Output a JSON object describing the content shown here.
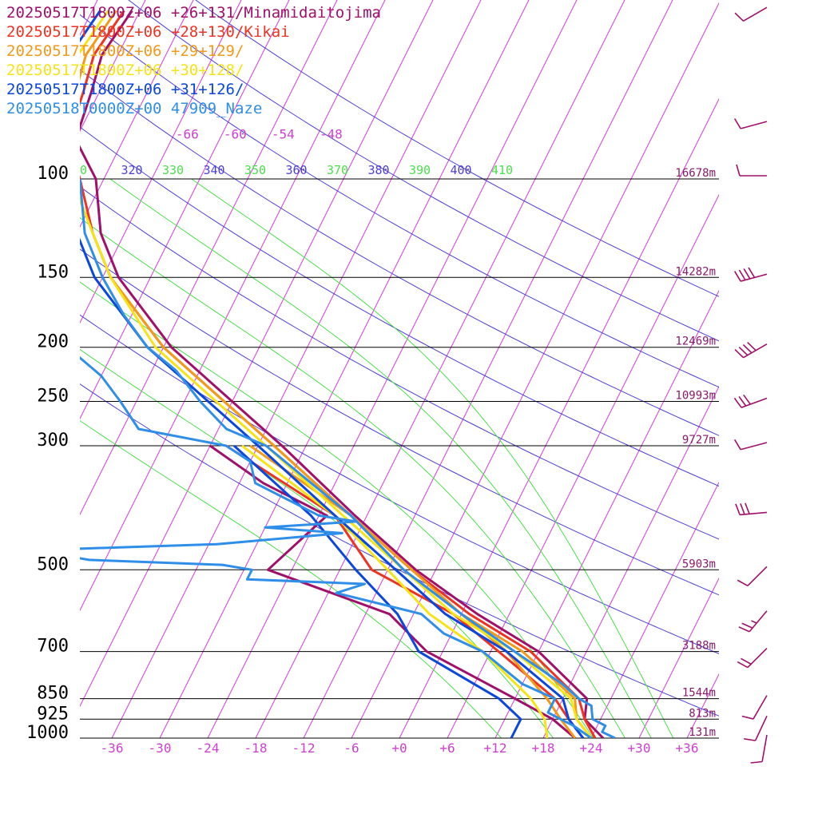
{
  "legend": [
    {
      "label": "20250517T1800Z+06 +26+131/Minamidaitojima",
      "color": "#a0106a"
    },
    {
      "label": "20250517T1800Z+06 +28+130/Kikai",
      "color": "#ee3322"
    },
    {
      "label": "20250517T1800Z+06 +29+129/",
      "color": "#f29a1a"
    },
    {
      "label": "20250517T1800Z+06 +30+128/",
      "color": "#f5e418"
    },
    {
      "label": "20250517T1800Z+06 +31+126/",
      "color": "#0b47dd"
    },
    {
      "label": "20250518T0000Z+00 47909_Naze",
      "color": "#2f8ee8"
    }
  ],
  "chart_data": {
    "type": "line",
    "chart_kind": "Skew-T sounding",
    "x_axis": {
      "ticks": [
        "-36",
        "-30",
        "-24",
        "-18",
        "-12",
        "-6",
        "+0",
        "+6",
        "+12",
        "+18",
        "+24",
        "+30",
        "+36"
      ],
      "range_c_at_1000hpa": [
        -40,
        40
      ]
    },
    "y_axis": {
      "scale": "log-pressure",
      "range_hpa": [
        80,
        1000
      ]
    },
    "pressure_levels": [
      {
        "p": 100,
        "label": "100",
        "height": "16678m"
      },
      {
        "p": 150,
        "label": "150",
        "height": "14282m"
      },
      {
        "p": 200,
        "label": "200",
        "height": "12469m"
      },
      {
        "p": 250,
        "label": "250",
        "height": "10993m"
      },
      {
        "p": 300,
        "label": "300",
        "height": "9727m"
      },
      {
        "p": 500,
        "label": "500",
        "height": "5903m"
      },
      {
        "p": 700,
        "label": "700",
        "height": "3188m"
      },
      {
        "p": 850,
        "label": "850",
        "height": "1544m"
      },
      {
        "p": 925,
        "label": "925",
        "height": "813m"
      },
      {
        "p": 1000,
        "label": "1000",
        "height": "131m"
      }
    ],
    "isotherm_labels": [
      "-66",
      "-60",
      "-54",
      "-48"
    ],
    "isotherms_c": [
      -150,
      -144,
      -138,
      -132,
      -126,
      -120,
      -114,
      -108,
      -102,
      -96,
      -90,
      -84,
      -78,
      -72,
      -66,
      -60,
      -54,
      -48,
      -42,
      -36,
      -30,
      -24,
      -18,
      -12,
      -6,
      0,
      6,
      12,
      18,
      24,
      30,
      36
    ],
    "isentropes_k": [
      320,
      340,
      360,
      380,
      400,
      420,
      440,
      460,
      480
    ],
    "moist_adiabats_k": [
      310,
      330,
      350,
      370,
      390,
      410
    ],
    "theta_labels": [
      "0",
      "320",
      "330",
      "340",
      "350",
      "360",
      "370",
      "380",
      "390",
      "400",
      "410"
    ],
    "series": [
      {
        "name": "20250517T1800Z+06 +26+131/Minamidaitojima",
        "color": "#a0106a",
        "temperature": [
          [
            1000,
            25.5
          ],
          [
            925,
            22
          ],
          [
            850,
            21
          ],
          [
            700,
            12
          ],
          [
            600,
            2
          ],
          [
            500,
            -8.5
          ],
          [
            400,
            -19.5
          ],
          [
            300,
            -33
          ],
          [
            250,
            -42
          ],
          [
            200,
            -53
          ],
          [
            150,
            -64
          ],
          [
            125,
            -69
          ],
          [
            100,
            -73
          ],
          [
            85,
            -78
          ],
          [
            70,
            -79
          ],
          [
            60,
            -80
          ],
          [
            50,
            -79
          ]
        ],
        "dewpoint": [
          [
            1000,
            22
          ],
          [
            925,
            18
          ],
          [
            850,
            12
          ],
          [
            700,
            -2
          ],
          [
            600,
            -9
          ],
          [
            500,
            -27
          ],
          [
            400,
            -23
          ],
          [
            350,
            -33
          ],
          [
            300,
            -42
          ]
        ]
      },
      {
        "name": "20250517T1800Z+06 +28+130/Kikai",
        "color": "#ee3322",
        "temperature": [
          [
            1000,
            24.5
          ],
          [
            925,
            22
          ],
          [
            850,
            20
          ],
          [
            700,
            11
          ],
          [
            600,
            1
          ],
          [
            500,
            -9
          ],
          [
            400,
            -20
          ],
          [
            300,
            -34
          ],
          [
            250,
            -43
          ],
          [
            200,
            -54
          ],
          [
            150,
            -65
          ],
          [
            125,
            -70
          ],
          [
            100,
            -75
          ],
          [
            85,
            -79
          ],
          [
            70,
            -80
          ],
          [
            60,
            -81
          ],
          [
            50,
            -80
          ]
        ],
        "dewpoint": [
          [
            1000,
            23
          ],
          [
            925,
            20
          ],
          [
            850,
            17
          ],
          [
            700,
            7
          ],
          [
            600,
            -1
          ],
          [
            500,
            -14
          ],
          [
            400,
            -22
          ],
          [
            300,
            -40
          ]
        ]
      },
      {
        "name": "20250517T1800Z+06 +29+129/",
        "color": "#f29a1a",
        "temperature": [
          [
            1000,
            24
          ],
          [
            925,
            21
          ],
          [
            850,
            19.5
          ],
          [
            700,
            10
          ],
          [
            600,
            0
          ],
          [
            500,
            -9
          ],
          [
            400,
            -20
          ],
          [
            300,
            -34
          ],
          [
            250,
            -43
          ],
          [
            200,
            -54
          ],
          [
            150,
            -65
          ],
          [
            125,
            -70
          ],
          [
            100,
            -76
          ],
          [
            85,
            -79
          ],
          [
            70,
            -81
          ],
          [
            60,
            -82
          ],
          [
            50,
            -81
          ]
        ],
        "dewpoint": [
          [
            1000,
            22
          ],
          [
            925,
            19
          ],
          [
            850,
            16
          ],
          [
            700,
            8
          ],
          [
            600,
            0
          ],
          [
            500,
            -10
          ],
          [
            400,
            -20
          ],
          [
            300,
            -37
          ]
        ]
      },
      {
        "name": "20250517T1800Z+06 +30+128/",
        "color": "#f5e418",
        "temperature": [
          [
            1000,
            24
          ],
          [
            925,
            21
          ],
          [
            850,
            19
          ],
          [
            700,
            9
          ],
          [
            600,
            -1
          ],
          [
            500,
            -10
          ],
          [
            400,
            -21
          ],
          [
            300,
            -35
          ],
          [
            250,
            -44
          ],
          [
            200,
            -55
          ],
          [
            150,
            -65
          ],
          [
            125,
            -70
          ],
          [
            100,
            -76
          ],
          [
            85,
            -80
          ],
          [
            70,
            -82
          ],
          [
            60,
            -83
          ],
          [
            50,
            -82
          ]
        ],
        "dewpoint": [
          [
            1000,
            18.5
          ],
          [
            925,
            17
          ],
          [
            850,
            14
          ],
          [
            700,
            5
          ],
          [
            600,
            -4
          ],
          [
            500,
            -12
          ],
          [
            400,
            -22
          ],
          [
            300,
            -38
          ]
        ]
      },
      {
        "name": "20250517T1800Z+06 +31+126/",
        "color": "#0b47dd",
        "temperature": [
          [
            1000,
            23
          ],
          [
            925,
            20
          ],
          [
            850,
            18
          ],
          [
            700,
            8
          ],
          [
            600,
            -2
          ],
          [
            500,
            -11
          ],
          [
            400,
            -22
          ],
          [
            300,
            -36
          ],
          [
            250,
            -45
          ],
          [
            200,
            -56
          ],
          [
            150,
            -67
          ],
          [
            125,
            -72
          ],
          [
            100,
            -76
          ],
          [
            85,
            -79
          ],
          [
            70,
            -82
          ],
          [
            60,
            -84
          ],
          [
            50,
            -83
          ]
        ],
        "dewpoint": [
          [
            1000,
            14
          ],
          [
            925,
            14
          ],
          [
            850,
            10
          ],
          [
            700,
            -3
          ],
          [
            600,
            -8
          ],
          [
            500,
            -16
          ],
          [
            400,
            -25
          ],
          [
            300,
            -39
          ]
        ]
      },
      {
        "name": "20250518T0000Z+00 47909_Naze",
        "color": "#2f8ee8",
        "temperature": [
          [
            1000,
            27
          ],
          [
            975,
            25
          ],
          [
            950,
            25
          ],
          [
            925,
            23
          ],
          [
            900,
            22.5
          ],
          [
            875,
            22
          ],
          [
            850,
            20
          ],
          [
            800,
            17
          ],
          [
            700,
            9
          ],
          [
            600,
            0
          ],
          [
            500,
            -10
          ],
          [
            400,
            -20
          ],
          [
            350,
            -27
          ],
          [
            300,
            -35
          ],
          [
            280,
            -41
          ],
          [
            250,
            -46
          ],
          [
            220,
            -51
          ],
          [
            200,
            -56
          ],
          [
            175,
            -61
          ],
          [
            150,
            -66
          ],
          [
            125,
            -71
          ],
          [
            100,
            -75
          ]
        ],
        "dewpoint": [
          [
            1000,
            24
          ],
          [
            950,
            21
          ],
          [
            925,
            19
          ],
          [
            900,
            17
          ],
          [
            850,
            17
          ],
          [
            800,
            12
          ],
          [
            700,
            5
          ],
          [
            650,
            -1
          ],
          [
            600,
            -5
          ],
          [
            550,
            -17
          ],
          [
            530,
            -14
          ],
          [
            520,
            -29
          ],
          [
            500,
            -29
          ],
          [
            490,
            -33
          ],
          [
            480,
            -50
          ],
          [
            470,
            -54
          ],
          [
            460,
            -55
          ],
          [
            450,
            -35
          ],
          [
            430,
            -20
          ],
          [
            420,
            -30
          ],
          [
            410,
            -19
          ],
          [
            400,
            -24
          ],
          [
            350,
            -34
          ],
          [
            320,
            -36
          ],
          [
            300,
            -40
          ],
          [
            280,
            -52
          ],
          [
            250,
            -56
          ],
          [
            225,
            -60
          ],
          [
            200,
            -66
          ],
          [
            175,
            -73
          ],
          [
            150,
            -84
          ],
          [
            125,
            -87
          ],
          [
            110,
            -85
          ],
          [
            100,
            -84
          ]
        ]
      }
    ],
    "wind_barbs": [
      {
        "p": 50,
        "speed_kt": 10,
        "dir_deg": 240
      },
      {
        "p": 80,
        "speed_kt": 10,
        "dir_deg": 255
      },
      {
        "p": 100,
        "speed_kt": 10,
        "dir_deg": 270
      },
      {
        "p": 150,
        "speed_kt": 40,
        "dir_deg": 255
      },
      {
        "p": 200,
        "speed_kt": 40,
        "dir_deg": 240
      },
      {
        "p": 250,
        "speed_kt": 30,
        "dir_deg": 250
      },
      {
        "p": 300,
        "speed_kt": 10,
        "dir_deg": 255
      },
      {
        "p": 400,
        "speed_kt": 30,
        "dir_deg": 265
      },
      {
        "p": 500,
        "speed_kt": 10,
        "dir_deg": 225
      },
      {
        "p": 600,
        "speed_kt": 25,
        "dir_deg": 220
      },
      {
        "p": 700,
        "speed_kt": 20,
        "dir_deg": 225
      },
      {
        "p": 850,
        "speed_kt": 10,
        "dir_deg": 210
      },
      {
        "p": 925,
        "speed_kt": 10,
        "dir_deg": 205
      },
      {
        "p": 1000,
        "speed_kt": 10,
        "dir_deg": 190
      }
    ],
    "colors": {
      "isotherm": "#d63cd6",
      "isotherm_label": "#d040d0",
      "dry_adiabat": "#4b3fd8",
      "moist_adiabat": "#4be04b",
      "isobar": "#000000",
      "height_label": "#8a1a6a",
      "barb": "#a0106a"
    }
  }
}
